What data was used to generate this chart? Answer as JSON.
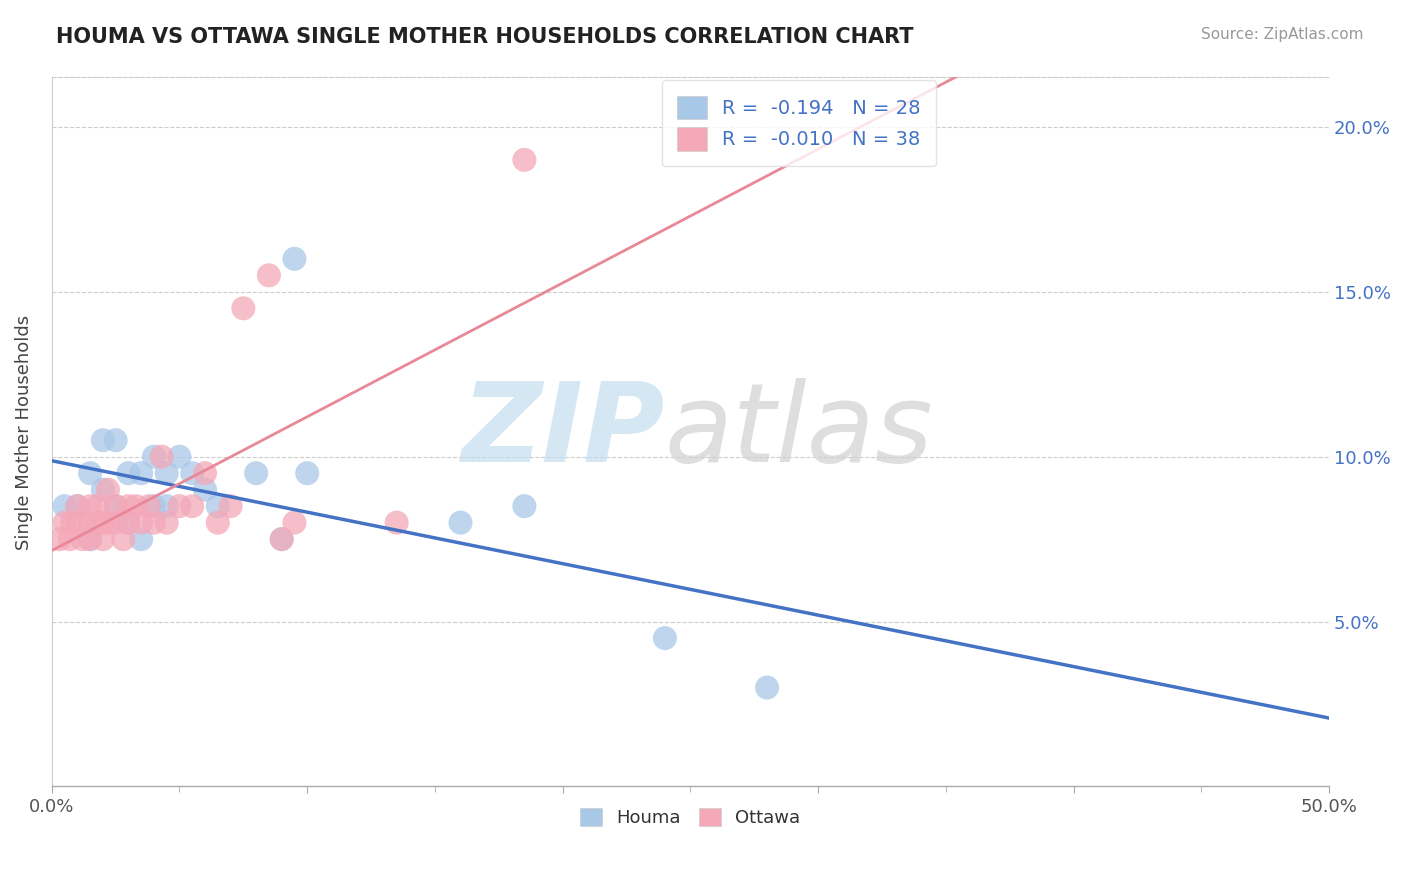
{
  "title": "HOUMA VS OTTAWA SINGLE MOTHER HOUSEHOLDS CORRELATION CHART",
  "source": "Source: ZipAtlas.com",
  "ylabel": "Single Mother Households",
  "xlim": [
    0.0,
    0.5
  ],
  "ylim": [
    0.0,
    0.215
  ],
  "xtick_positions": [
    0.0,
    0.1,
    0.2,
    0.3,
    0.4,
    0.5
  ],
  "ytick_positions": [
    0.05,
    0.1,
    0.15,
    0.2
  ],
  "yticklabels": [
    "5.0%",
    "10.0%",
    "15.0%",
    "20.0%"
  ],
  "houma_color": "#a8c8e8",
  "ottawa_color": "#f4a8b8",
  "houma_line_color": "#4472c4",
  "ottawa_line_color": "#e88898",
  "R_houma": -0.194,
  "N_houma": 28,
  "R_ottawa": -0.01,
  "N_ottawa": 38,
  "legend_label_houma": "Houma",
  "legend_label_ottawa": "Ottawa",
  "title_color": "#222222",
  "source_color": "#999999",
  "label_color": "#4472c4",
  "houma_x": [
    0.005,
    0.01,
    0.015,
    0.015,
    0.02,
    0.02,
    0.025,
    0.025,
    0.03,
    0.03,
    0.035,
    0.035,
    0.04,
    0.04,
    0.045,
    0.045,
    0.05,
    0.055,
    0.06,
    0.065,
    0.08,
    0.09,
    0.095,
    0.1,
    0.16,
    0.185,
    0.24,
    0.28
  ],
  "houma_y": [
    0.085,
    0.085,
    0.075,
    0.095,
    0.09,
    0.105,
    0.085,
    0.105,
    0.08,
    0.095,
    0.075,
    0.095,
    0.085,
    0.1,
    0.085,
    0.095,
    0.1,
    0.095,
    0.09,
    0.085,
    0.095,
    0.075,
    0.16,
    0.095,
    0.08,
    0.085,
    0.045,
    0.03
  ],
  "ottawa_x": [
    0.003,
    0.005,
    0.007,
    0.008,
    0.01,
    0.01,
    0.012,
    0.015,
    0.015,
    0.015,
    0.018,
    0.018,
    0.02,
    0.02,
    0.022,
    0.022,
    0.025,
    0.025,
    0.028,
    0.03,
    0.03,
    0.033,
    0.035,
    0.038,
    0.04,
    0.043,
    0.045,
    0.05,
    0.055,
    0.06,
    0.065,
    0.07,
    0.075,
    0.085,
    0.09,
    0.095,
    0.135,
    0.185
  ],
  "ottawa_y": [
    0.075,
    0.08,
    0.075,
    0.08,
    0.08,
    0.085,
    0.075,
    0.075,
    0.08,
    0.085,
    0.08,
    0.085,
    0.075,
    0.08,
    0.08,
    0.09,
    0.08,
    0.085,
    0.075,
    0.08,
    0.085,
    0.085,
    0.08,
    0.085,
    0.08,
    0.1,
    0.08,
    0.085,
    0.085,
    0.095,
    0.08,
    0.085,
    0.145,
    0.155,
    0.075,
    0.08,
    0.08,
    0.19
  ]
}
